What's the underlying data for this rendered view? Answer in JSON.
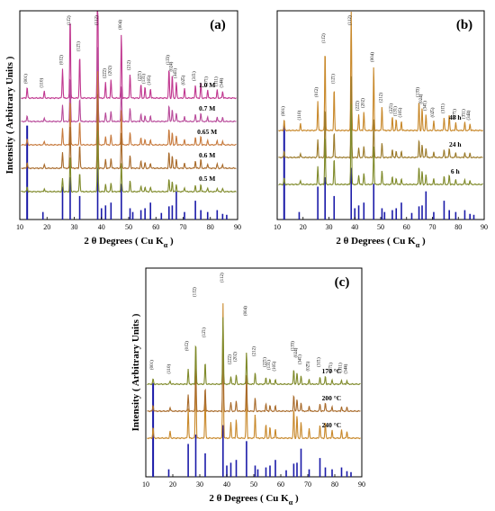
{
  "figure": {
    "background": "#ffffff",
    "frame_color": "#000000"
  },
  "chart_data": [
    {
      "type": "line",
      "panel": "a",
      "panel_label": "(a)",
      "xlabel_main": "2 θ Degrees ( Cu K",
      "xlabel_sub": "α",
      "xlabel_close": " )",
      "ylabel": "Intensity ( Arbitrary Units )",
      "xlim": [
        10,
        90
      ],
      "xticks": [
        10,
        20,
        30,
        40,
        50,
        60,
        70,
        80,
        90
      ],
      "series": [
        {
          "name": "1.0 M",
          "color": "#c0368f",
          "peak_scale": 1.0
        },
        {
          "name": "0.7 M",
          "color": "#b84a9a",
          "peak_scale": 0.55
        },
        {
          "name": "0.65 M",
          "color": "#c77a3d",
          "peak_scale": 0.55
        },
        {
          "name": "0.6 M",
          "color": "#a86a2a",
          "peak_scale": 0.55
        },
        {
          "name": "0.5 M",
          "color": "#7f8a2a",
          "peak_scale": 0.45
        }
      ],
      "annotations": [
        {
          "x": 12.7,
          "text": "(001)"
        },
        {
          "x": 18.5,
          "text": "(110)"
        },
        {
          "x": 25.7,
          "text": "(01̄2)"
        },
        {
          "x": 28.5,
          "text": "(11̄2)"
        },
        {
          "x": 32.0,
          "text": "(12̄1)"
        },
        {
          "x": 38.6,
          "text": "(112)"
        },
        {
          "x": 41.5,
          "text": "(22̄2)"
        },
        {
          "x": 43.5,
          "text": "(202)"
        },
        {
          "x": 47.3,
          "text": "(004)"
        },
        {
          "x": 50.5,
          "text": "(212)"
        },
        {
          "x": 54.5,
          "text": "(22̄1)"
        },
        {
          "x": 56.0,
          "text": "(13̄1)"
        },
        {
          "x": 58.0,
          "text": "(105)"
        },
        {
          "x": 64.8,
          "text": "(13̄3)"
        },
        {
          "x": 66.0,
          "text": "(024)"
        },
        {
          "x": 67.5,
          "text": "(34̄1)"
        },
        {
          "x": 70.5,
          "text": "(02̄5)"
        },
        {
          "x": 74.5,
          "text": "(31̄1)"
        },
        {
          "x": 79.0,
          "text": "(27̄1)"
        },
        {
          "x": 82.5,
          "text": "(3̄11)"
        },
        {
          "x": 84.5,
          "text": "(34̄4)"
        }
      ]
    },
    {
      "type": "line",
      "panel": "b",
      "panel_label": "(b)",
      "xlabel_main": "2 θ Degrees ( Cu K",
      "xlabel_sub": "α",
      "xlabel_close": " )",
      "ylabel": "",
      "xlim": [
        10,
        90
      ],
      "xticks": [
        10,
        20,
        30,
        40,
        50,
        60,
        70,
        80,
        90
      ],
      "series": [
        {
          "name": "48 h",
          "color": "#c8882a",
          "peak_scale": 1.0
        },
        {
          "name": "24 h",
          "color": "#9b7a2a",
          "peak_scale": 0.6
        },
        {
          "name": "6 h",
          "color": "#7f8a2a",
          "peak_scale": 0.6
        }
      ],
      "annotations": [
        {
          "x": 12.7,
          "text": "(001)"
        },
        {
          "x": 19.0,
          "text": "(110)"
        },
        {
          "x": 25.7,
          "text": "(01̄2)"
        },
        {
          "x": 28.5,
          "text": "(11̄2)"
        },
        {
          "x": 32.0,
          "text": "(12̄1)"
        },
        {
          "x": 38.6,
          "text": "(112)"
        },
        {
          "x": 41.5,
          "text": "(22̄2)"
        },
        {
          "x": 43.5,
          "text": "(202)"
        },
        {
          "x": 47.3,
          "text": "(004)"
        },
        {
          "x": 50.5,
          "text": "(212)"
        },
        {
          "x": 54.5,
          "text": "(22̄1)"
        },
        {
          "x": 56.0,
          "text": "(13̄1)"
        },
        {
          "x": 58.0,
          "text": "(105)"
        },
        {
          "x": 64.8,
          "text": "(13̄3)"
        },
        {
          "x": 66.0,
          "text": "(024)"
        },
        {
          "x": 67.5,
          "text": "(34̄1)"
        },
        {
          "x": 70.5,
          "text": "(02̄5)"
        },
        {
          "x": 74.5,
          "text": "(31̄1)"
        },
        {
          "x": 79.0,
          "text": "(27̄1)"
        },
        {
          "x": 82.5,
          "text": "(3̄11)"
        },
        {
          "x": 84.5,
          "text": "(34̄4)"
        }
      ]
    },
    {
      "type": "line",
      "panel": "c",
      "panel_label": "(c)",
      "xlabel_main": "2 θ Degrees ( Cu K",
      "xlabel_sub": "α",
      "xlabel_close": " )",
      "ylabel": "Intensity ( Arbitrary Units )",
      "xlim": [
        10,
        90
      ],
      "xticks": [
        10,
        20,
        30,
        40,
        50,
        60,
        70,
        80,
        90
      ],
      "series": [
        {
          "name": "240 °C",
          "color": "#c8882a",
          "peak_scale": 1.0
        },
        {
          "name": "200 °C",
          "color": "#a86a2a",
          "peak_scale": 0.55
        },
        {
          "name": "170 °C",
          "color": "#7f8a2a",
          "peak_scale": 0.5
        }
      ],
      "annotations": [
        {
          "x": 12.7,
          "text": "(001)"
        },
        {
          "x": 19.0,
          "text": "(110)"
        },
        {
          "x": 25.7,
          "text": "(01̄2)"
        },
        {
          "x": 28.5,
          "text": "(11̄2)"
        },
        {
          "x": 32.0,
          "text": "(12̄1)"
        },
        {
          "x": 38.6,
          "text": "(112)"
        },
        {
          "x": 41.5,
          "text": "(22̄2)"
        },
        {
          "x": 43.5,
          "text": "(202)"
        },
        {
          "x": 47.3,
          "text": "(004)"
        },
        {
          "x": 50.5,
          "text": "(212)"
        },
        {
          "x": 54.5,
          "text": "(22̄1)"
        },
        {
          "x": 56.0,
          "text": "(13̄1)"
        },
        {
          "x": 58.0,
          "text": "(105)"
        },
        {
          "x": 64.8,
          "text": "(13̄3)"
        },
        {
          "x": 66.0,
          "text": "(024)"
        },
        {
          "x": 67.5,
          "text": "(34̄1)"
        },
        {
          "x": 70.5,
          "text": "(02̄5)"
        },
        {
          "x": 74.5,
          "text": "(31̄1)"
        },
        {
          "x": 79.0,
          "text": "(27̄1)"
        },
        {
          "x": 82.5,
          "text": "(3̄11)"
        },
        {
          "x": 84.5,
          "text": "(34̄4)"
        }
      ]
    }
  ],
  "peaks": [
    {
      "x": 12.7,
      "h": 0.08
    },
    {
      "x": 19.0,
      "h": 0.05
    },
    {
      "x": 25.7,
      "h": 0.22
    },
    {
      "x": 28.5,
      "h": 0.62
    },
    {
      "x": 32.0,
      "h": 0.32
    },
    {
      "x": 38.6,
      "h": 1.0
    },
    {
      "x": 41.5,
      "h": 0.12
    },
    {
      "x": 43.5,
      "h": 0.14
    },
    {
      "x": 47.3,
      "h": 0.48
    },
    {
      "x": 50.5,
      "h": 0.18
    },
    {
      "x": 54.5,
      "h": 0.1
    },
    {
      "x": 56.0,
      "h": 0.08
    },
    {
      "x": 58.0,
      "h": 0.07
    },
    {
      "x": 64.8,
      "h": 0.22
    },
    {
      "x": 66.0,
      "h": 0.17
    },
    {
      "x": 67.5,
      "h": 0.12
    },
    {
      "x": 70.5,
      "h": 0.07
    },
    {
      "x": 74.5,
      "h": 0.1
    },
    {
      "x": 76.5,
      "h": 0.12
    },
    {
      "x": 79.0,
      "h": 0.06
    },
    {
      "x": 82.5,
      "h": 0.06
    },
    {
      "x": 84.5,
      "h": 0.05
    }
  ],
  "reference_sticks": [
    {
      "x": 12.7,
      "h": 1.0
    },
    {
      "x": 18.5,
      "h": 0.08
    },
    {
      "x": 25.7,
      "h": 0.35
    },
    {
      "x": 28.5,
      "h": 0.45
    },
    {
      "x": 32.0,
      "h": 0.25
    },
    {
      "x": 38.6,
      "h": 0.55
    },
    {
      "x": 40.0,
      "h": 0.12
    },
    {
      "x": 41.5,
      "h": 0.15
    },
    {
      "x": 43.5,
      "h": 0.18
    },
    {
      "x": 47.3,
      "h": 0.38
    },
    {
      "x": 50.5,
      "h": 0.12
    },
    {
      "x": 51.5,
      "h": 0.08
    },
    {
      "x": 54.5,
      "h": 0.1
    },
    {
      "x": 56.0,
      "h": 0.12
    },
    {
      "x": 58.0,
      "h": 0.18
    },
    {
      "x": 62.0,
      "h": 0.07
    },
    {
      "x": 64.8,
      "h": 0.14
    },
    {
      "x": 66.0,
      "h": 0.15
    },
    {
      "x": 67.5,
      "h": 0.3
    },
    {
      "x": 70.5,
      "h": 0.08
    },
    {
      "x": 74.5,
      "h": 0.2
    },
    {
      "x": 76.5,
      "h": 0.1
    },
    {
      "x": 79.0,
      "h": 0.08
    },
    {
      "x": 82.5,
      "h": 0.1
    },
    {
      "x": 84.5,
      "h": 0.06
    },
    {
      "x": 86.0,
      "h": 0.05
    }
  ],
  "reference_color": "#1a1aa8"
}
